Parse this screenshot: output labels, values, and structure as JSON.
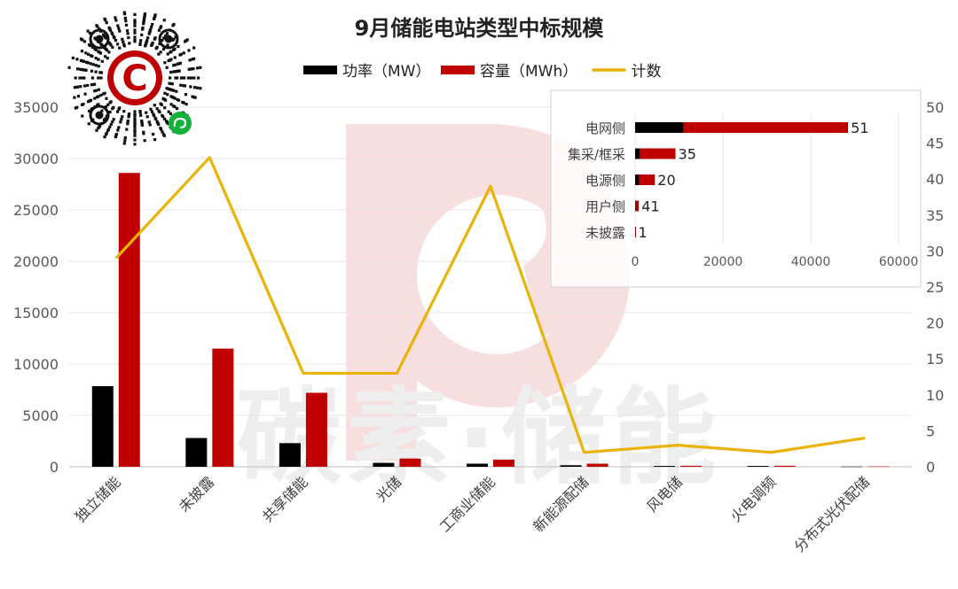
{
  "chart_data": [
    {
      "type": "bar+line",
      "title": "9月储能电站类型中标规模",
      "categories": [
        "独立储能",
        "未披露",
        "共享储能",
        "光储",
        "工商业储能",
        "新能源配储",
        "风电储",
        "火电调频",
        "分布式光伏配储"
      ],
      "series": [
        {
          "name": "功率（MW）",
          "type": "bar",
          "axis": "left",
          "color": "#000000",
          "values": [
            7850,
            2800,
            2300,
            380,
            300,
            150,
            80,
            80,
            20
          ]
        },
        {
          "name": "容量（MWh）",
          "type": "bar",
          "axis": "left",
          "color": "#c00000",
          "values": [
            28600,
            11500,
            7200,
            800,
            700,
            300,
            100,
            100,
            30
          ]
        },
        {
          "name": "计数",
          "type": "line",
          "axis": "right",
          "color": "#eab308",
          "values": [
            29,
            43,
            13,
            13,
            39,
            2,
            3,
            2,
            4
          ]
        }
      ],
      "left_axis": {
        "min": 0,
        "max": 35000,
        "ticks": [
          "0",
          "5000",
          "10000",
          "15000",
          "20000",
          "25000",
          "30000",
          "35000"
        ]
      },
      "right_axis": {
        "min": 0,
        "max": 50,
        "ticks": [
          "0",
          "5",
          "10",
          "15",
          "20",
          "25",
          "30",
          "35",
          "40",
          "45",
          "50"
        ]
      },
      "legend_position": "top"
    },
    {
      "type": "stacked-bar-horizontal",
      "categories": [
        "电网侧",
        "集采/框采",
        "电源侧",
        "用户侧",
        "未披露"
      ],
      "series": [
        {
          "name": "功率（MW）",
          "color": "#000000",
          "values": [
            11000,
            1000,
            900,
            150,
            30
          ]
        },
        {
          "name": "容量（MWh）",
          "color": "#c00000",
          "values": [
            37500,
            8200,
            3600,
            700,
            80
          ]
        }
      ],
      "counts": [
        51,
        35,
        20,
        41,
        1
      ],
      "count_labels": [
        "51",
        "35",
        "20",
        "41",
        "1"
      ],
      "x_axis": {
        "min": 0,
        "max": 60000,
        "ticks": [
          "0",
          "20000",
          "40000",
          "60000"
        ]
      },
      "legend_position": "none"
    }
  ],
  "watermark": {
    "text": "碳素·储能"
  },
  "logo": {
    "letter": "C"
  }
}
